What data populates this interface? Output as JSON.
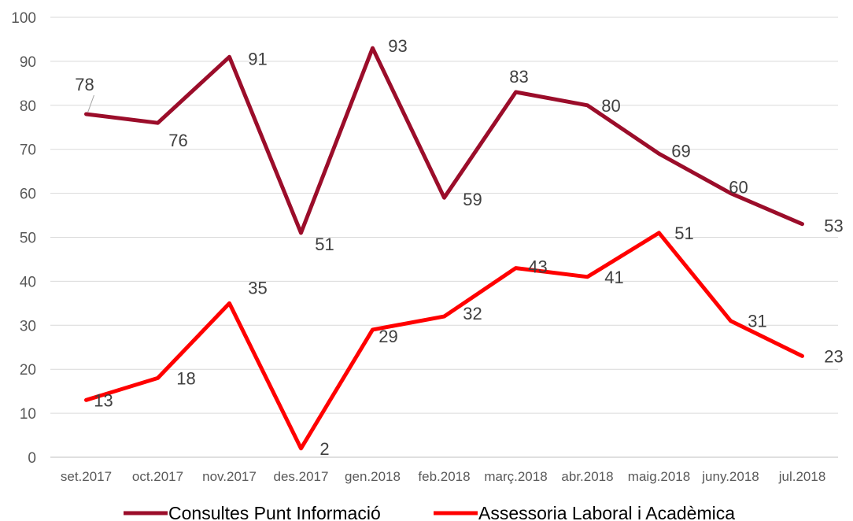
{
  "chart_data": {
    "type": "line",
    "title": "",
    "xlabel": "",
    "ylabel": "",
    "ylim": [
      0,
      100
    ],
    "yticks": [
      0,
      10,
      20,
      30,
      40,
      50,
      60,
      70,
      80,
      90,
      100
    ],
    "grid": true,
    "legend_position": "bottom",
    "categories": [
      "set.2017",
      "oct.2017",
      "nov.2017",
      "des.2017",
      "gen.2018",
      "feb.2018",
      "març.2018",
      "abr.2018",
      "maig.2018",
      "juny.2018",
      "jul.2018"
    ],
    "series": [
      {
        "name": "Consultes Punt Informació",
        "color": "#9b0d2a",
        "values": [
          78,
          76,
          91,
          51,
          93,
          59,
          83,
          80,
          69,
          60,
          53
        ]
      },
      {
        "name": "Assessoria Laboral i Acadèmica",
        "color": "#ff0000",
        "values": [
          13,
          18,
          35,
          2,
          29,
          32,
          43,
          41,
          51,
          31,
          23
        ]
      }
    ]
  }
}
